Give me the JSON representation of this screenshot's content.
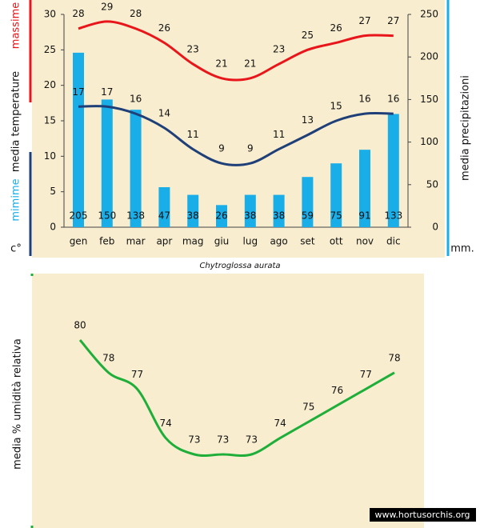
{
  "chart_data": [
    {
      "type": "bar-line",
      "categories": [
        "gen",
        "feb",
        "mar",
        "apr",
        "mag",
        "giu",
        "lug",
        "ago",
        "set",
        "ott",
        "nov",
        "dic"
      ],
      "series": [
        {
          "name": "massime",
          "type": "line",
          "color": "#e8161b",
          "values": [
            28,
            29,
            28,
            26,
            23,
            21,
            21,
            23,
            25,
            26,
            27,
            27
          ]
        },
        {
          "name": "mimime",
          "type": "line",
          "color": "#1f3f78",
          "values": [
            17,
            17,
            16,
            14,
            11,
            9,
            9,
            11,
            13,
            15,
            16,
            16
          ]
        },
        {
          "type": "bar",
          "axis": "y2",
          "color": "#19aee8",
          "values": [
            205,
            150,
            138,
            47,
            38,
            26,
            38,
            38,
            59,
            75,
            91,
            133
          ]
        }
      ],
      "ylabel": "media  temperature",
      "yunit": "c°",
      "y2label": "media  precipitazioni",
      "y2unit": "mm.",
      "ylim": [
        0,
        30
      ],
      "yticks": [
        0,
        5,
        10,
        15,
        20,
        25,
        30
      ],
      "y2lim": [
        0,
        250
      ],
      "y2ticks": [
        0,
        50,
        100,
        150,
        200,
        250
      ],
      "caption": "Chytroglossa aurata"
    },
    {
      "type": "line",
      "ylabel": "media % umidità relativa",
      "series": [
        {
          "color": "#1fae3a",
          "values": [
            80,
            78,
            77,
            74,
            73,
            73,
            73,
            74,
            75,
            76,
            77,
            78
          ]
        }
      ],
      "watermark": "www.hortusorchis.org"
    }
  ]
}
